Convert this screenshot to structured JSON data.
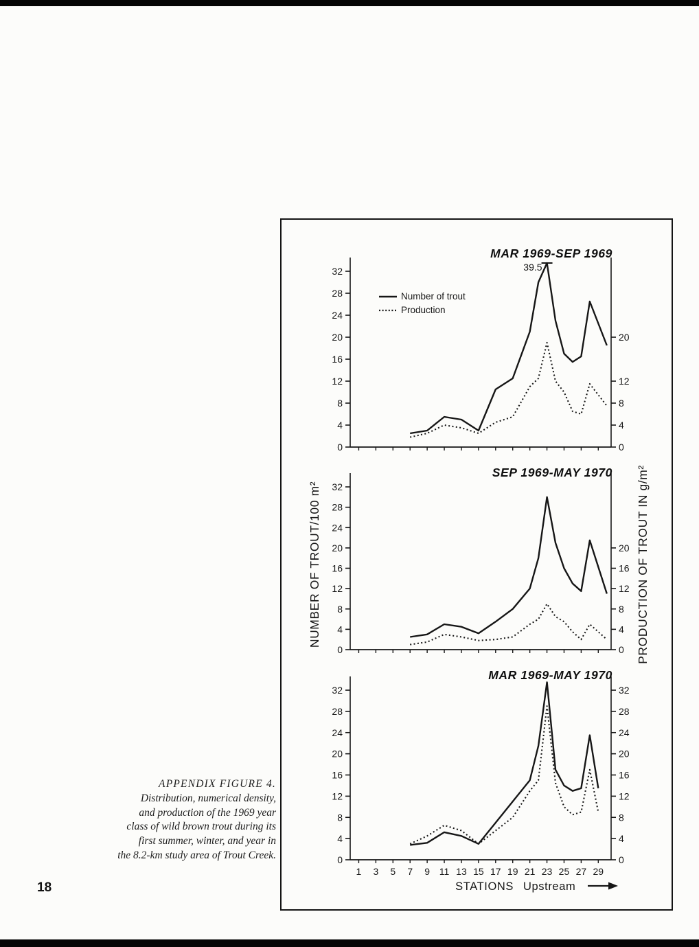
{
  "page_number": "18",
  "caption": {
    "lines": [
      "APPENDIX FIGURE 4.",
      "Distribution, numerical density,",
      "and production of the 1969 year",
      "class of wild brown trout during its",
      "first summer, winter, and year in",
      "the 8.2-km study area of Trout Creek."
    ]
  },
  "legend": {
    "solid": "Number of trout",
    "dotted": "Production"
  },
  "axis_labels": {
    "left": "NUMBER OF TROUT/100 m²",
    "right": "PRODUCTION OF TROUT IN g/m²",
    "x_stations": "STATIONS",
    "x_upstream": "Upstream"
  },
  "ink_color": "#161616",
  "chart_data": [
    {
      "type": "line",
      "title": "MAR 1969-SEP 1969",
      "x": [
        7,
        9,
        11,
        13,
        15,
        17,
        19,
        21,
        22,
        23,
        24,
        25,
        26,
        27,
        28,
        30
      ],
      "series": [
        {
          "name": "Number of trout",
          "style": "solid",
          "values": [
            2.5,
            3,
            5.5,
            5,
            3,
            10.5,
            12.5,
            21,
            30,
            39.5,
            23,
            17,
            15.5,
            16.5,
            26.5,
            18.5
          ]
        },
        {
          "name": "Production",
          "style": "dotted",
          "values": [
            1.8,
            2.5,
            4,
            3.5,
            2.5,
            4.5,
            5.5,
            11,
            12.5,
            19,
            12,
            10,
            6.5,
            6,
            11.5,
            7.5
          ]
        }
      ],
      "ylim": [
        0,
        34
      ],
      "yticks_left": [
        0,
        4,
        8,
        12,
        16,
        20,
        24,
        28,
        32
      ],
      "yticks_right": [
        0,
        4,
        8,
        12,
        20
      ],
      "xticks": [
        1,
        3,
        5,
        7,
        9,
        11,
        13,
        15,
        17,
        19,
        21,
        23,
        25,
        27,
        29
      ],
      "show_xtick_labels": false,
      "clip_display": 33.5,
      "annotation": {
        "text": "39.5",
        "x": 23,
        "value": 39.5
      },
      "legend": true
    },
    {
      "type": "line",
      "title": "SEP 1969-MAY 1970",
      "x": [
        7,
        9,
        11,
        13,
        15,
        17,
        19,
        21,
        22,
        23,
        24,
        25,
        26,
        27,
        28,
        30
      ],
      "series": [
        {
          "name": "Number of trout",
          "style": "solid",
          "values": [
            2.5,
            3,
            5,
            4.5,
            3.2,
            5.5,
            8,
            12,
            18,
            30,
            21,
            16,
            13,
            11.5,
            21.5,
            11
          ]
        },
        {
          "name": "Production",
          "style": "dotted",
          "values": [
            1,
            1.5,
            3,
            2.5,
            1.8,
            2,
            2.5,
            5,
            6,
            9,
            6.5,
            5.5,
            3.5,
            2,
            5,
            2
          ]
        }
      ],
      "ylim": [
        0,
        34
      ],
      "yticks_left": [
        0,
        4,
        8,
        12,
        16,
        20,
        24,
        28,
        32
      ],
      "yticks_right": [
        0,
        4,
        8,
        12,
        16,
        20
      ],
      "xticks": [
        1,
        3,
        5,
        7,
        9,
        11,
        13,
        15,
        17,
        19,
        21,
        23,
        25,
        27,
        29
      ],
      "show_xtick_labels": false,
      "legend": false
    },
    {
      "type": "line",
      "title": "MAR 1969-MAY 1970",
      "x": [
        7,
        9,
        11,
        13,
        15,
        17,
        19,
        21,
        22,
        23,
        24,
        25,
        26,
        27,
        28,
        29
      ],
      "series": [
        {
          "name": "Number of trout",
          "style": "solid",
          "values": [
            2.8,
            3.2,
            5.2,
            4.5,
            3,
            7,
            11,
            15,
            21.5,
            33.5,
            17,
            14,
            13,
            13.5,
            23.5,
            13.5
          ]
        },
        {
          "name": "Production",
          "style": "dotted",
          "values": [
            3,
            4.5,
            6.5,
            5.5,
            3,
            5.5,
            8,
            13,
            15,
            29,
            14.5,
            10,
            8.5,
            9,
            17,
            9
          ]
        }
      ],
      "ylim": [
        0,
        34
      ],
      "yticks_left": [
        0,
        4,
        8,
        12,
        16,
        20,
        24,
        28,
        32
      ],
      "yticks_right": [
        0,
        4,
        8,
        12,
        16,
        20,
        24,
        28,
        32
      ],
      "xticks": [
        1,
        3,
        5,
        7,
        9,
        11,
        13,
        15,
        17,
        19,
        21,
        23,
        25,
        27,
        29
      ],
      "show_xtick_labels": true,
      "legend": false
    }
  ]
}
